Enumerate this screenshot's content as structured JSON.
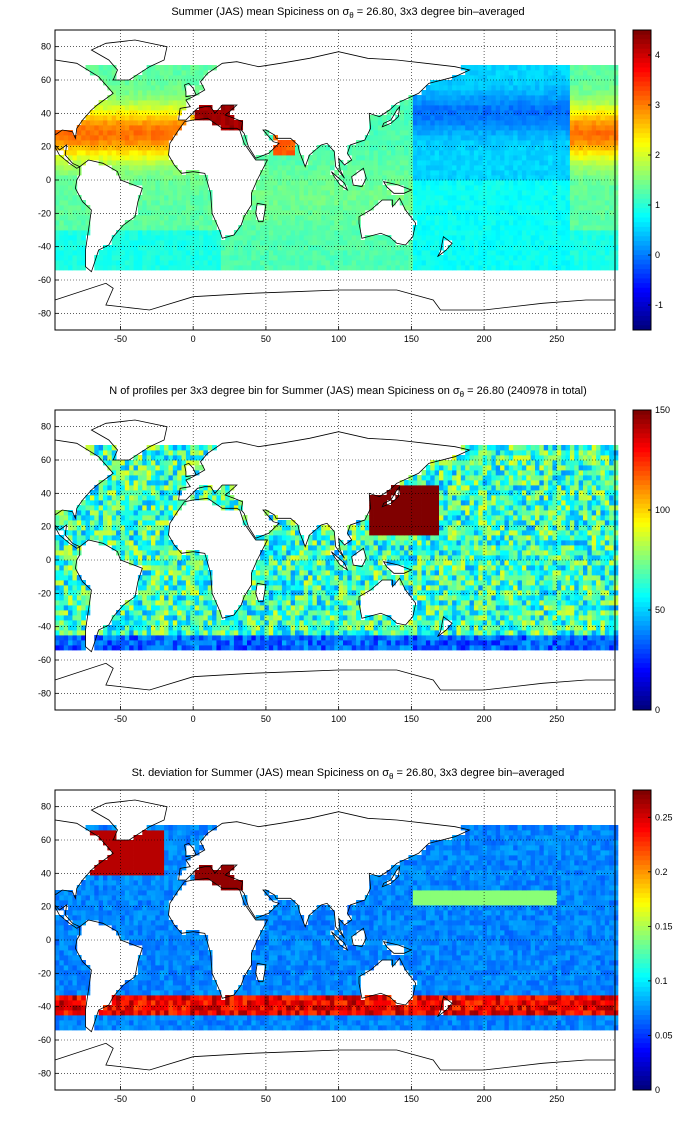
{
  "figure": {
    "panels": [
      {
        "id": "mean",
        "title_prefix": "Summer (JAS) mean Spiciness on σ",
        "title_sub": "θ",
        "title_suffix": " = 26.80, 3x3 degree bin–averaged",
        "colorbar": {
          "min": -1.5,
          "max": 4.5,
          "ticks": [
            -1,
            0,
            1,
            2,
            3,
            4
          ]
        }
      },
      {
        "id": "count",
        "title_prefix": "N of profiles per 3x3 degree bin for Summer (JAS) mean Spiciness on σ",
        "title_sub": "θ",
        "title_suffix": " = 26.80 (240978 in total)",
        "colorbar": {
          "min": 0,
          "max": 150,
          "ticks": [
            0,
            50,
            100,
            150
          ]
        }
      },
      {
        "id": "std",
        "title_prefix": "St. deviation for Summer (JAS) mean Spiciness on σ",
        "title_sub": "θ",
        "title_suffix": " = 26.80, 3x3 degree bin–averaged",
        "colorbar": {
          "min": 0,
          "max": 0.275,
          "ticks": [
            0,
            0.05,
            0.1,
            0.15,
            0.2,
            0.25
          ]
        }
      }
    ],
    "x_ticks": [
      -50,
      0,
      50,
      100,
      150,
      200,
      250
    ],
    "y_ticks": [
      -80,
      -60,
      -40,
      -20,
      0,
      20,
      40,
      60,
      80
    ],
    "x_range": [
      -95,
      290
    ],
    "y_range": [
      -90,
      90
    ],
    "colormap": "jet"
  }
}
